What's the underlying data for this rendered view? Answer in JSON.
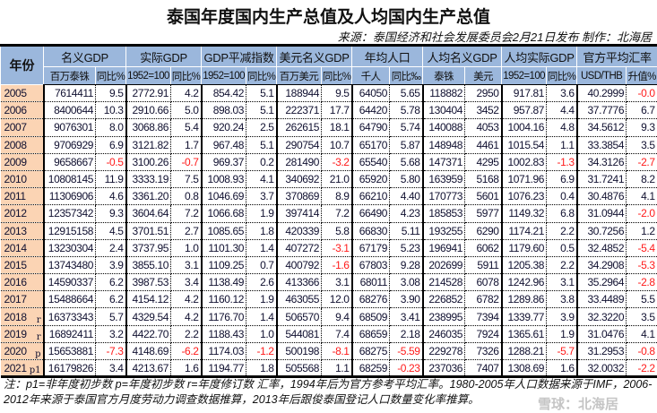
{
  "title": "泰国年度国内生产总值及人均国内生产总值",
  "source": "来源：泰国经济和社会发展委员会2月21日发布  制作：北海居",
  "header": {
    "year": "年份",
    "groups": [
      "名义GDP",
      "实际GDP",
      "GDP平减指数",
      "美元名义GDP",
      "年均人口",
      "人均名义GDP",
      "人均实际GDP",
      "官方平均汇率"
    ],
    "subs": [
      "百万泰铢",
      "同比%",
      "1952=100",
      "同比%",
      "1952=100",
      "同比%",
      "百万美元",
      "同比%",
      "千人",
      "同比‰",
      "泰铢",
      "美元",
      "1952=100",
      "同比%",
      "USD/THB",
      "升值%"
    ]
  },
  "rows": [
    {
      "year": "2005",
      "mark": "",
      "v": [
        "7614411",
        "9.5",
        "2772.91",
        "4.2",
        "854.42",
        "5.1",
        "188944",
        "9.5",
        "64050",
        "5.65",
        "118882",
        "2950",
        "917.81",
        "3.6",
        "40.2999",
        "-0.0"
      ]
    },
    {
      "year": "2006",
      "mark": "",
      "v": [
        "8400644",
        "10.3",
        "2910.66",
        "5.0",
        "898.03",
        "5.1",
        "222371",
        "17.7",
        "64420",
        "5.78",
        "130404",
        "3452",
        "957.87",
        "4.4",
        "37.7776",
        "6.7"
      ]
    },
    {
      "year": "2007",
      "mark": "",
      "v": [
        "9076301",
        "8.0",
        "3068.86",
        "5.4",
        "920.24",
        "2.5",
        "262615",
        "18.1",
        "64790",
        "5.74",
        "140088",
        "4053",
        "1004.16",
        "4.8",
        "34.5612",
        "9.3"
      ]
    },
    {
      "year": "2008",
      "mark": "",
      "v": [
        "9706929",
        "6.9",
        "3121.82",
        "1.7",
        "967.48",
        "5.1",
        "290754",
        "10.7",
        "65170",
        "5.87",
        "148948",
        "4461",
        "1015.54",
        "1.1",
        "33.3854",
        "3.5"
      ]
    },
    {
      "year": "2009",
      "mark": "",
      "v": [
        "9658667",
        "-0.5",
        "3100.26",
        "-0.7",
        "969.37",
        "0.2",
        "281490",
        "-3.2",
        "65540",
        "5.68",
        "147371",
        "4295",
        "1002.83",
        "-1.3",
        "34.3126",
        "-2.7"
      ]
    },
    {
      "year": "2010",
      "mark": "",
      "v": [
        "10808145",
        "11.9",
        "3333.19",
        "7.5",
        "1008.93",
        "4.1",
        "340692",
        "21.0",
        "65920",
        "5.80",
        "163959",
        "5168",
        "1071.96",
        "6.9",
        "31.7241",
        "8.2"
      ]
    },
    {
      "year": "2011",
      "mark": "",
      "v": [
        "11306906",
        "4.6",
        "3361.20",
        "0.8",
        "1046.69",
        "3.7",
        "370869",
        "8.9",
        "66210",
        "4.40",
        "170773",
        "5601",
        "1076.23",
        "0.4",
        "30.4876",
        "4.1"
      ]
    },
    {
      "year": "2012",
      "mark": "",
      "v": [
        "12357342",
        "9.3",
        "3604.64",
        "7.2",
        "1066.68",
        "1.9",
        "397414",
        "7.2",
        "66490",
        "4.23",
        "185853",
        "5977",
        "1149.32",
        "6.8",
        "31.0944",
        "-2.0"
      ]
    },
    {
      "year": "2013",
      "mark": "",
      "v": [
        "12915158",
        "4.5",
        "3701.51",
        "2.7",
        "1085.65",
        "1.8",
        "420339",
        "5.8",
        "66830",
        "5.11",
        "193255",
        "6290",
        "1174.21",
        "2.2",
        "30.7256",
        "1.2"
      ]
    },
    {
      "year": "2014",
      "mark": "",
      "v": [
        "13230304",
        "2.4",
        "3737.95",
        "1.0",
        "1101.30",
        "1.4",
        "407272",
        "-3.1",
        "67179",
        "5.23",
        "196941",
        "6062",
        "1179.60",
        "0.5",
        "32.4852",
        "-5.4"
      ]
    },
    {
      "year": "2015",
      "mark": "",
      "v": [
        "13743480",
        "3.9",
        "3855.10",
        "3.1",
        "1109.25",
        "0.7",
        "400792",
        "-1.6",
        "67803",
        "9.28",
        "202699",
        "5911",
        "1205.38",
        "2.2",
        "34.2908",
        "-5.3"
      ]
    },
    {
      "year": "2016",
      "mark": "",
      "v": [
        "14590337",
        "6.2",
        "3987.53",
        "3.4",
        "1138.49",
        "2.6",
        "413366",
        "3.1",
        "68011",
        "3.08",
        "214528",
        "6078",
        "1242.96",
        "3.1",
        "35.2964",
        "-2.8"
      ]
    },
    {
      "year": "2017",
      "mark": "",
      "v": [
        "15488664",
        "6.2",
        "4154.12",
        "4.2",
        "1160.12",
        "1.9",
        "463055",
        "12.0",
        "68276",
        "3.90",
        "226852",
        "6782",
        "1289.86",
        "3.8",
        "33.4489",
        "5.5"
      ]
    },
    {
      "year": "2018",
      "mark": "r",
      "v": [
        "16373343",
        "5.7",
        "4329.54",
        "4.2",
        "1176.70",
        "1.4",
        "506570",
        "9.4",
        "68509",
        "3.41",
        "238995",
        "7394",
        "1339.77",
        "3.9",
        "32.3220",
        "3.5"
      ]
    },
    {
      "year": "2019",
      "mark": "r",
      "v": [
        "16892411",
        "3.2",
        "4422.70",
        "2.2",
        "1188.43",
        "1.0",
        "544081",
        "7.4",
        "68659",
        "2.18",
        "246035",
        "7924",
        "1365.61",
        "1.9",
        "31.0476",
        "4.1"
      ]
    },
    {
      "year": "2020",
      "mark": "p",
      "v": [
        "15653881",
        "-7.3",
        "4148.69",
        "-6.2",
        "1174.03",
        "-1.2",
        "500198",
        "-8.1",
        "68275",
        "-5.59",
        "229278",
        "7326",
        "1288.21",
        "-5.7",
        "31.2953",
        "-0.8"
      ]
    },
    {
      "year": "2021",
      "mark": "p1",
      "v": [
        "16179826",
        "3.4",
        "4213.67",
        "1.6",
        "1194.77",
        "1.8",
        "505568",
        "1.1",
        "68259",
        "-0.23",
        "237036",
        "7407",
        "1308.69",
        "1.6",
        "32.0032",
        "-2.2"
      ]
    }
  ],
  "note": "注：p1=非年度初步数 p=年度初步数  r=年度修订数  汇率，1994年后为官方参考平均汇率。1980-2005年人口数据来源于IMF，2006-2012年来源于泰国官方月度劳动力调查数据推算，2013年后跟俊泰国登记人口数量变化率推算。",
  "watermark": "雪球：北海居",
  "colors": {
    "header_bg": "#9bb7dc",
    "year_bg": "#fbd4b4",
    "negative": "#ff1a1a",
    "text": "#101030"
  }
}
